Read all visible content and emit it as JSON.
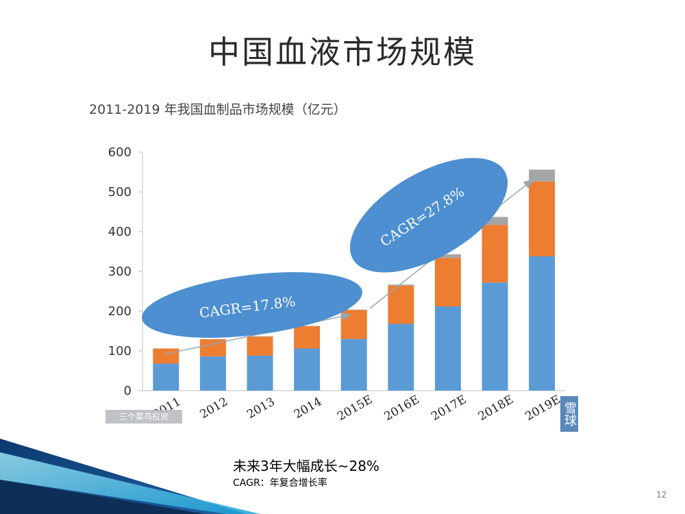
{
  "slide": {
    "title": "中国血液市场规模",
    "page_number": "12",
    "notes": [
      "未来3年大幅成长~28%",
      "CAGR：年复合增长率"
    ]
  },
  "chart_data": {
    "type": "bar",
    "stacked": true,
    "title": "2011-2019 年我国血制品市场规模（亿元）",
    "categories": [
      "2011",
      "2012",
      "2013",
      "2014",
      "2015E",
      "2016E",
      "2017E",
      "2018E",
      "2019E"
    ],
    "series": [
      {
        "color": "#5b9bd5",
        "values": [
          68,
          86,
          88,
          106,
          130,
          168,
          212,
          272,
          338
        ]
      },
      {
        "color": "#ed7d31",
        "values": [
          38,
          43,
          48,
          56,
          73,
          96,
          122,
          145,
          188
        ]
      },
      {
        "color": "#a5a5a5",
        "values": [
          0,
          1,
          1,
          1,
          1,
          3,
          9,
          20,
          30
        ]
      }
    ],
    "ylim": [
      0,
      600
    ],
    "yticks": [
      0,
      100,
      200,
      300,
      400,
      500,
      600
    ],
    "grid": false,
    "annotations": [
      {
        "text": "CAGR=17.8%",
        "color": "#4d8fd0"
      },
      {
        "text": "CAGR=27.8%",
        "color": "#4d8fd0"
      }
    ]
  },
  "watermarks": {
    "left": "三个菜鸟投资",
    "right": "雪球"
  }
}
